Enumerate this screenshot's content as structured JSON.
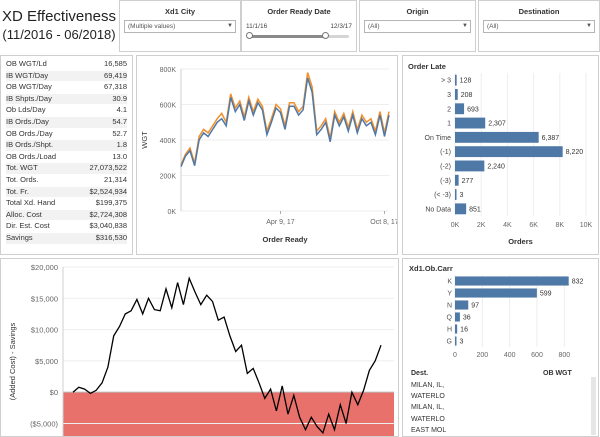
{
  "title": {
    "line1": "XD Effectiveness",
    "line2": "(11/2016 - 06/2018)"
  },
  "filters": {
    "city": {
      "label": "Xd1 City",
      "value": "(Multiple values)"
    },
    "date": {
      "label": "Order Ready Date",
      "start": "11/1/16",
      "end": "12/3/17",
      "range_fraction": [
        0.0,
        0.76
      ]
    },
    "origin": {
      "label": "Origin",
      "value": "(All)"
    },
    "destination": {
      "label": "Destination",
      "value": "(All)"
    }
  },
  "kpis": [
    {
      "k": "OB WGT/Ld",
      "v": "16,585"
    },
    {
      "k": "IB WGT/Day",
      "v": "69,419"
    },
    {
      "k": "OB WGT/Day",
      "v": "67,318"
    },
    {
      "k": "IB Shpts./Day",
      "v": "30.9"
    },
    {
      "k": "Ob Lds/Day",
      "v": "4.1"
    },
    {
      "k": "IB Ords./Day",
      "v": "54.7"
    },
    {
      "k": "OB Ords./Day",
      "v": "52.7"
    },
    {
      "k": "IB Ords./Shpt.",
      "v": "1.8"
    },
    {
      "k": "OB Ords./Load",
      "v": "13.0"
    },
    {
      "k": "Tot. WGT",
      "v": "27,073,522"
    },
    {
      "k": "Tot. Ords.",
      "v": "21,314"
    },
    {
      "k": "Tot. Fr.",
      "v": "$2,524,934"
    },
    {
      "k": "Total Xd. Hand",
      "v": "$199,375"
    },
    {
      "k": "Alloc. Cost",
      "v": "$2,724,308"
    },
    {
      "k": "Dir. Est. Cost",
      "v": "$3,040,838"
    },
    {
      "k": "Savings",
      "v": "$316,530"
    }
  ],
  "colors": {
    "blue": "#4e79a7",
    "orange": "#f28e2b",
    "red_band": "#e8716c",
    "line": "#000000"
  },
  "chart_data": [
    {
      "type": "line",
      "xlabel": "Order Ready",
      "ylabel": "WGT",
      "yticks": [
        "0K",
        "200K",
        "400K",
        "600K",
        "800K"
      ],
      "ylim": [
        0,
        800000
      ],
      "xtick_labels": [
        "Apr 9, 17",
        "Oct 8, 17"
      ],
      "xtick_index": [
        22,
        45
      ],
      "series": [
        {
          "color": "#f28e2b",
          "values": [
            260000,
            320000,
            355000,
            270000,
            420000,
            460000,
            440000,
            480000,
            520000,
            550000,
            500000,
            660000,
            580000,
            620000,
            530000,
            640000,
            560000,
            630000,
            590000,
            450000,
            520000,
            600000,
            575000,
            480000,
            610000,
            610000,
            560000,
            590000,
            780000,
            700000,
            450000,
            480000,
            520000,
            410000,
            560000,
            500000,
            550000,
            470000,
            560000,
            460000,
            540000,
            500000,
            520000,
            450000,
            560000,
            440000,
            560000
          ]
        },
        {
          "color": "#4e79a7",
          "values": [
            250000,
            310000,
            340000,
            255000,
            400000,
            440000,
            420000,
            460000,
            500000,
            520000,
            480000,
            640000,
            560000,
            600000,
            510000,
            620000,
            540000,
            610000,
            570000,
            430000,
            500000,
            580000,
            555000,
            460000,
            590000,
            590000,
            540000,
            570000,
            750000,
            670000,
            430000,
            460000,
            500000,
            390000,
            540000,
            480000,
            530000,
            450000,
            540000,
            440000,
            520000,
            480000,
            500000,
            430000,
            540000,
            420000,
            540000
          ]
        }
      ]
    },
    {
      "type": "bar",
      "title": "Order Late",
      "xlabel": "Orders",
      "categories": [
        "> 3",
        "3",
        "2",
        "1",
        "On Time",
        "(-1)",
        "(-2)",
        "(-3)",
        "(< -3)",
        "No Data"
      ],
      "values": [
        128,
        208,
        693,
        2307,
        6387,
        8220,
        2240,
        277,
        3,
        851
      ],
      "value_labels": [
        "128",
        "208",
        "693",
        "2,307",
        "6,387",
        "8,220",
        "2,240",
        "277",
        "3",
        "851"
      ],
      "xticks": [
        "0K",
        "2K",
        "4K",
        "6K",
        "8K",
        "10K"
      ],
      "xlim": [
        0,
        10000
      ]
    },
    {
      "type": "line",
      "ylabel": "(Added Cost) - Savings",
      "yticks": [
        "$20,000",
        "$15,000",
        "$10,000",
        "$5,000",
        "$0",
        "($5,000)"
      ],
      "ylim": [
        -7000,
        20000
      ],
      "values": [
        0,
        800,
        500,
        -200,
        300,
        1500,
        4000,
        9000,
        10500,
        12500,
        13000,
        14800,
        12500,
        15000,
        13200,
        13000,
        16500,
        13500,
        17500,
        14000,
        18200,
        16000,
        14000,
        15500,
        14500,
        11500,
        12000,
        9000,
        6500,
        7500,
        3000,
        3800,
        1500,
        -1000,
        500,
        -3000,
        1000,
        -3500,
        -500,
        -4000,
        -6000,
        -4000,
        -5500,
        -6500,
        -3500,
        -6000,
        -2000,
        -5000,
        0,
        -2000,
        300,
        3500,
        5000,
        7500
      ]
    },
    {
      "type": "bar",
      "title": "Xd1.Ob.Carr",
      "categories": [
        "K",
        "Y",
        "N",
        "Q",
        "H",
        "G"
      ],
      "values": [
        832,
        599,
        97,
        36,
        16,
        3
      ],
      "xticks": [
        "0",
        "200",
        "400",
        "600",
        "800"
      ],
      "xlim": [
        0,
        900
      ]
    }
  ],
  "dest_table": {
    "col1": "Dest.",
    "col2": "OB WGT",
    "rows": [
      "MILAN, IL,",
      "WATERLO",
      "MILAN, IL,",
      "WATERLO",
      "EAST MOL"
    ]
  }
}
